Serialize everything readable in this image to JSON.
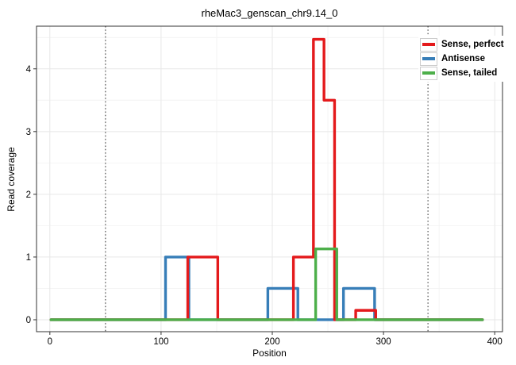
{
  "chart_data": {
    "type": "line",
    "subtype": "step-coverage",
    "title": "rheMac3_genscan_chr9.14_0",
    "xlabel": "Position",
    "ylabel": "Read coverage",
    "xlim": [
      -12,
      407
    ],
    "ylim": [
      -0.19,
      4.68
    ],
    "x_ticks": [
      0,
      100,
      200,
      300,
      400
    ],
    "x_minor_ticks": [
      50,
      150,
      250,
      350
    ],
    "y_ticks": [
      0,
      1,
      2,
      3,
      4
    ],
    "y_minor_ticks": [
      0.5,
      1.5,
      2.5,
      3.5,
      4.5
    ],
    "grid": "major+minor",
    "legend_position": "inside-top-right",
    "panel_border_color": "#333333",
    "major_grid_color": "#e7e7e7",
    "minor_grid_color": "#f4f4f4",
    "tick_color": "#333333",
    "vlines": [
      {
        "x": 50,
        "style": "dotted",
        "color": "#4d4d4d"
      },
      {
        "x": 340,
        "style": "dotted",
        "color": "#4d4d4d"
      }
    ],
    "series": [
      {
        "name": "Sense, perfect",
        "color": "#e41a1c",
        "steps": [
          [
            1,
            124,
            0
          ],
          [
            124,
            151,
            1
          ],
          [
            151,
            219,
            0
          ],
          [
            219,
            237,
            1
          ],
          [
            237,
            246.5,
            4.47
          ],
          [
            246.5,
            256,
            3.5
          ],
          [
            256,
            275,
            0
          ],
          [
            275,
            293,
            0.15
          ],
          [
            293,
            389,
            0
          ]
        ]
      },
      {
        "name": "Antisense",
        "color": "#377eb8",
        "steps": [
          [
            1,
            104,
            0
          ],
          [
            104,
            125,
            1
          ],
          [
            125,
            196,
            0
          ],
          [
            196,
            223,
            0.5
          ],
          [
            223,
            264,
            0
          ],
          [
            264,
            292,
            0.5
          ],
          [
            292,
            389,
            0
          ]
        ]
      },
      {
        "name": "Sense, tailed",
        "color": "#4daf4a",
        "steps": [
          [
            1,
            239,
            0
          ],
          [
            239,
            258,
            1.13
          ],
          [
            258,
            389,
            0
          ]
        ]
      }
    ],
    "draw_order": [
      1,
      0,
      2
    ]
  }
}
